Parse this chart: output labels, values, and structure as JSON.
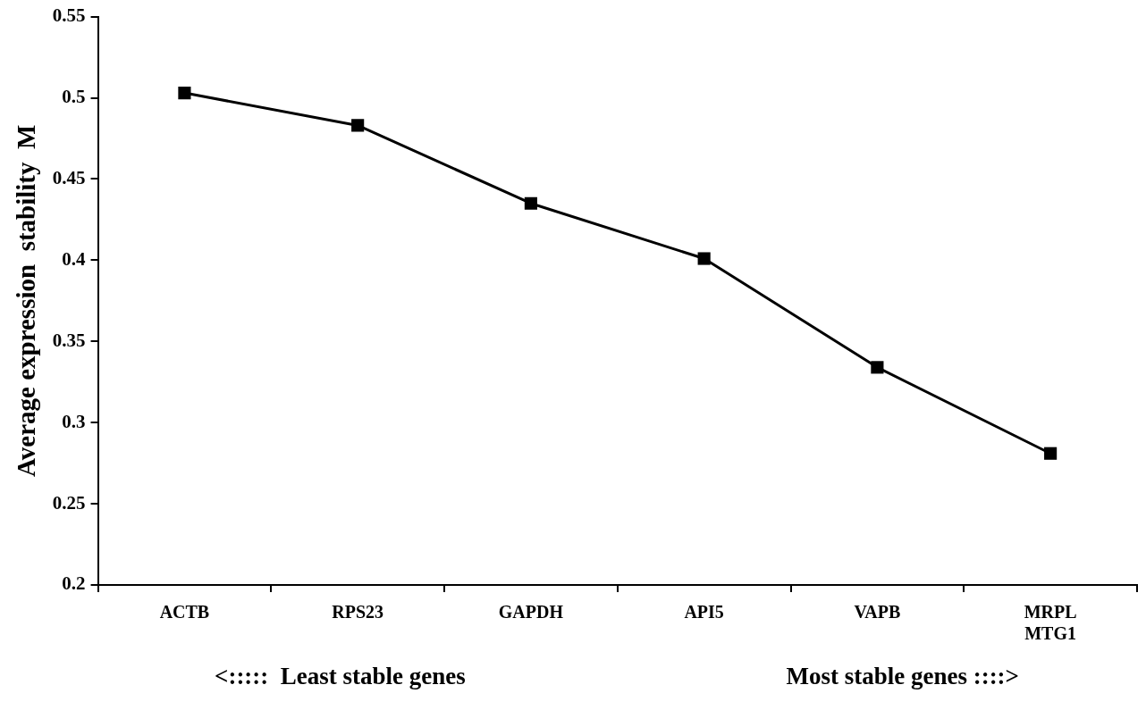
{
  "chart_data": {
    "type": "line",
    "ylabel": "Average expression  stability  M",
    "categories": [
      "ACTB",
      "RPS23",
      "GAPDH",
      "API5",
      "VAPB",
      "MRPL MTG1"
    ],
    "series": [
      {
        "color": "#000000",
        "values": [
          0.503,
          0.483,
          0.435,
          0.401,
          0.334,
          0.281
        ]
      }
    ],
    "ylim": [
      0.2,
      0.55
    ],
    "yticks": [
      0.2,
      0.25,
      0.3,
      0.35,
      0.4,
      0.45,
      0.5,
      0.55
    ],
    "grid": false,
    "legend": false,
    "marker": "square",
    "line_style": "solid",
    "annotations": [
      "<:::::  Least stable genes",
      "Most stable genes ::::>"
    ]
  }
}
